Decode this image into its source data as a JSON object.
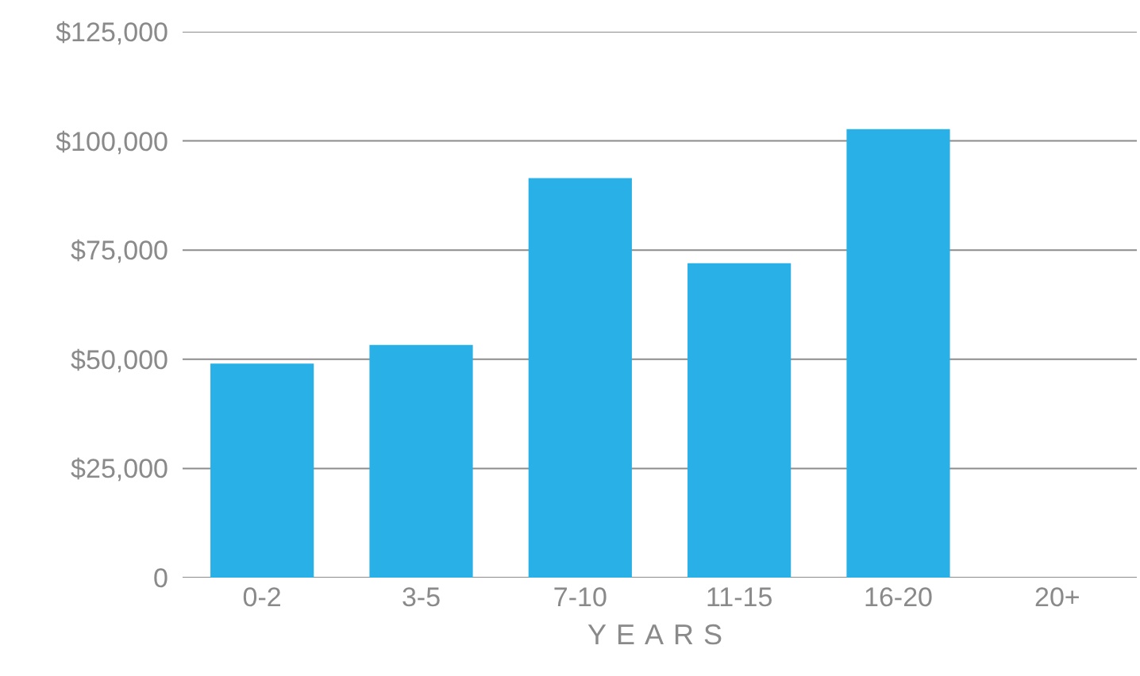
{
  "chart_data": {
    "type": "bar",
    "xlabel": "YEARS",
    "categories": [
      "0-2",
      "3-5",
      "7-10",
      "11-15",
      "16-20",
      "20+"
    ],
    "values": [
      49000,
      53300,
      91500,
      72000,
      102700,
      null
    ],
    "color": "#29b0e6",
    "ylim": [
      0,
      125000
    ],
    "yticks": [
      {
        "value": 0,
        "label": "0"
      },
      {
        "value": 25000,
        "label": "$25,000"
      },
      {
        "value": 50000,
        "label": "$50,000"
      },
      {
        "value": 75000,
        "label": "$75,000"
      },
      {
        "value": 100000,
        "label": "$100,000"
      },
      {
        "value": 125000,
        "label": "$125,000"
      }
    ],
    "grid": "y"
  }
}
